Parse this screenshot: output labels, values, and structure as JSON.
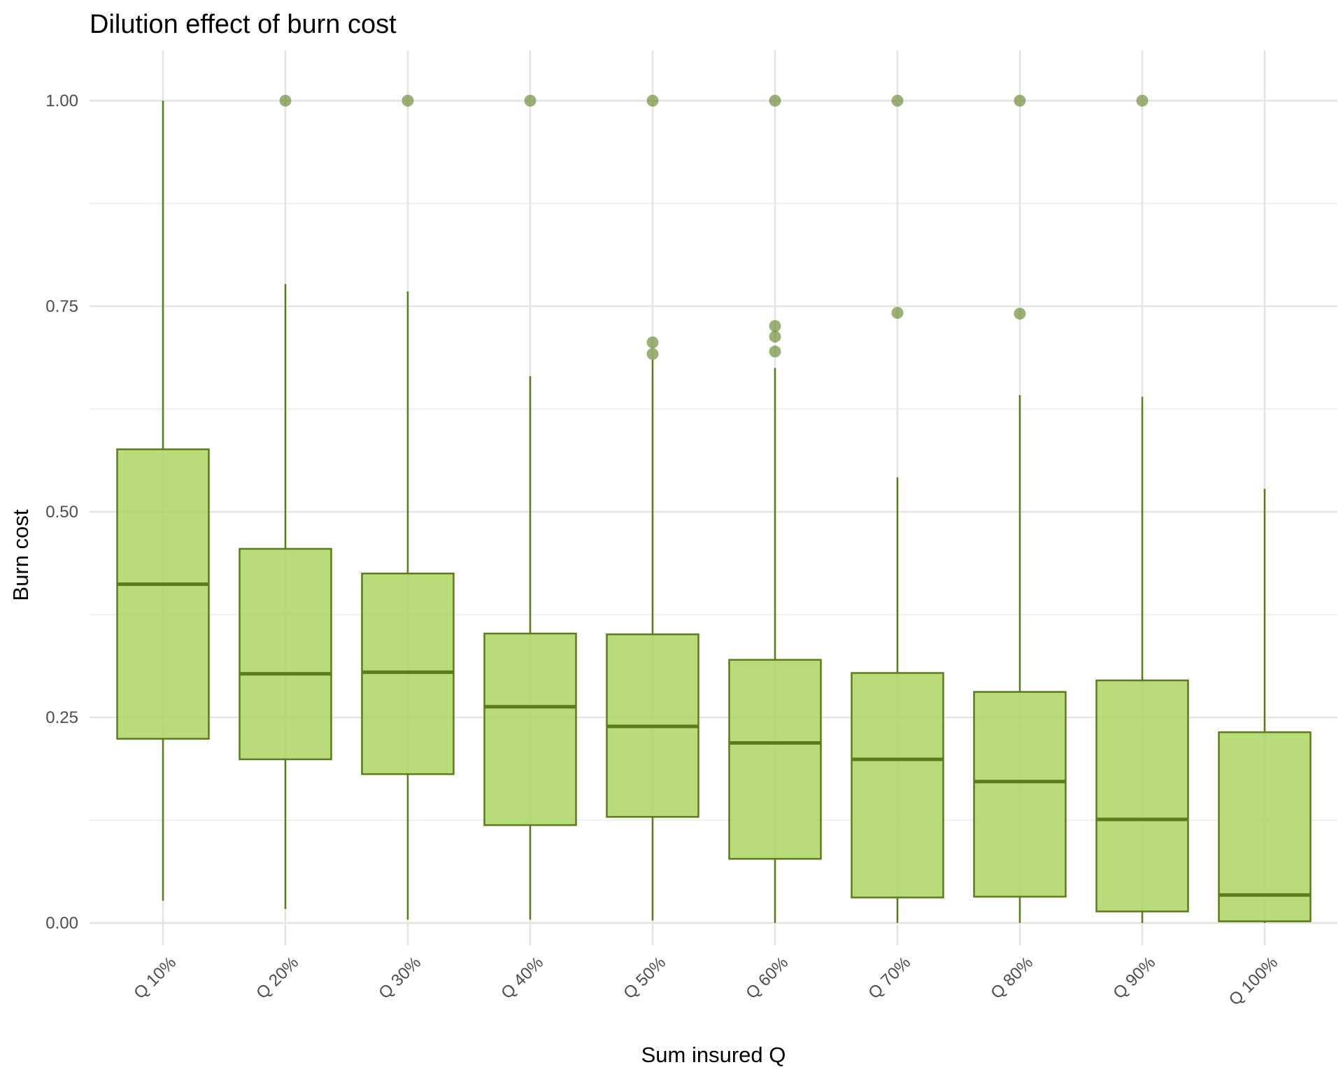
{
  "chart_data": {
    "type": "boxplot",
    "title": "Dilution effect of burn cost",
    "xlabel": "Sum insured Q",
    "ylabel": "Burn cost",
    "ylim": [
      -0.09,
      1.06
    ],
    "yticks": [
      0.0,
      0.25,
      0.5,
      0.75,
      1.0
    ],
    "ytick_labels": [
      "0.00",
      "0.25",
      "0.50",
      "0.75",
      "1.00"
    ],
    "grid": true,
    "colors": {
      "fill": "#a9d35c",
      "stroke": "#5a7d1a",
      "grid": "#e5e5e5"
    },
    "categories": [
      "Q 10%",
      "Q 20%",
      "Q 30%",
      "Q 40%",
      "Q 50%",
      "Q 60%",
      "Q 70%",
      "Q 80%",
      "Q 90%",
      "Q 100%"
    ],
    "boxes": [
      {
        "category": "Q 10%",
        "whisker_low": 0.027,
        "q1": 0.224,
        "median": 0.412,
        "q3": 0.576,
        "whisker_high": 1.0,
        "outliers": []
      },
      {
        "category": "Q 20%",
        "whisker_low": 0.017,
        "q1": 0.199,
        "median": 0.303,
        "q3": 0.455,
        "whisker_high": 0.777,
        "outliers": [
          1.0
        ]
      },
      {
        "category": "Q 30%",
        "whisker_low": 0.004,
        "q1": 0.181,
        "median": 0.305,
        "q3": 0.425,
        "whisker_high": 0.768,
        "outliers": [
          1.0
        ]
      },
      {
        "category": "Q 40%",
        "whisker_low": 0.004,
        "q1": 0.119,
        "median": 0.263,
        "q3": 0.352,
        "whisker_high": 0.665,
        "outliers": [
          1.0
        ]
      },
      {
        "category": "Q 50%",
        "whisker_low": 0.003,
        "q1": 0.129,
        "median": 0.239,
        "q3": 0.351,
        "whisker_high": 0.685,
        "outliers": [
          0.692,
          0.706,
          1.0
        ]
      },
      {
        "category": "Q 60%",
        "whisker_low": 0.0,
        "q1": 0.078,
        "median": 0.219,
        "q3": 0.32,
        "whisker_high": 0.675,
        "outliers": [
          0.695,
          0.713,
          0.726,
          1.0
        ]
      },
      {
        "category": "Q 70%",
        "whisker_low": 0.0,
        "q1": 0.031,
        "median": 0.199,
        "q3": 0.304,
        "whisker_high": 0.542,
        "outliers": [
          0.742,
          1.0
        ]
      },
      {
        "category": "Q 80%",
        "whisker_low": 0.0,
        "q1": 0.032,
        "median": 0.172,
        "q3": 0.281,
        "whisker_high": 0.642,
        "outliers": [
          0.741,
          1.0
        ]
      },
      {
        "category": "Q 90%",
        "whisker_low": 0.0,
        "q1": 0.014,
        "median": 0.126,
        "q3": 0.295,
        "whisker_high": 0.64,
        "outliers": [
          1.0
        ]
      },
      {
        "category": "Q 100%",
        "whisker_low": 0.0,
        "q1": 0.002,
        "median": 0.034,
        "q3": 0.232,
        "whisker_high": 0.528,
        "outliers": []
      }
    ]
  }
}
